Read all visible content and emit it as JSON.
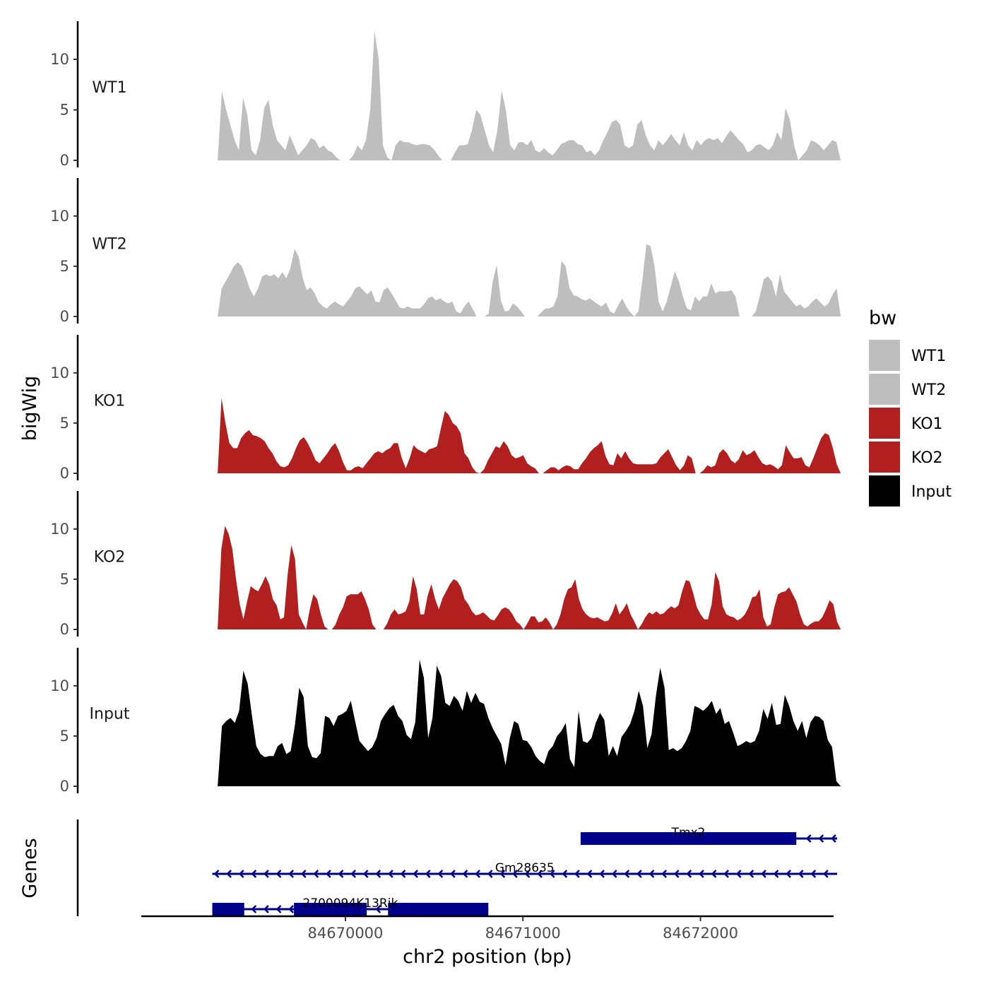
{
  "chart_data": {
    "type": "area",
    "ylabel": "bigWig",
    "xlabel": "chr2 position (bp)",
    "genes_label": "Genes",
    "ylim": [
      0,
      13.5
    ],
    "yticks": [
      0,
      5,
      10
    ],
    "xlim": [
      84668850,
      84672750
    ],
    "xticks": [
      84670000,
      84671000,
      84672000
    ],
    "xtick_labels": [
      "84670000",
      "84671000",
      "84672000"
    ],
    "legend": {
      "title": "bw",
      "placement": "right",
      "entries": [
        {
          "label": "WT1",
          "color": "#bebebe"
        },
        {
          "label": "WT2",
          "color": "#bebebe"
        },
        {
          "label": "KO1",
          "color": "#b21f1f"
        },
        {
          "label": "KO2",
          "color": "#b21f1f"
        },
        {
          "label": "Input",
          "color": "#000000"
        }
      ]
    },
    "x_range": [
      84669280,
      84672790
    ],
    "series": [
      {
        "name": "WT1",
        "color": "#bebebe",
        "values": [
          0,
          6.8,
          5,
          3.5,
          2,
          1,
          6.2,
          4.5,
          1,
          0.5,
          2,
          5.2,
          6,
          3.5,
          2,
          1.5,
          1,
          2.5,
          1.5,
          0.5,
          1,
          1.5,
          2.2,
          2,
          1.2,
          1.5,
          1,
          0.8,
          0.3,
          0,
          0,
          0,
          0.5,
          1.5,
          1,
          2,
          5,
          12.8,
          10,
          1.5,
          0.3,
          0,
          1.5,
          2,
          1.8,
          1.8,
          1.6,
          1.5,
          1.6,
          1.6,
          1.5,
          1.1,
          0.5,
          0,
          0,
          0,
          0.8,
          1.5,
          1.5,
          1.6,
          3,
          5,
          4.5,
          3,
          1.5,
          0.8,
          3,
          6.9,
          5,
          1.5,
          1,
          1.8,
          1.8,
          1.5,
          2,
          1,
          0.8,
          1.2,
          0.8,
          0.5,
          1,
          1.6,
          1.8,
          2,
          2,
          1.6,
          1.5,
          0.8,
          1,
          0.5,
          1,
          2,
          2.8,
          3.8,
          4,
          3.5,
          1.5,
          1.2,
          1.5,
          3.5,
          4,
          2.5,
          1.5,
          1,
          2,
          1.5,
          2,
          2.6,
          2,
          1.5,
          2.8,
          1.5,
          1,
          2,
          1.5,
          2,
          2.2,
          2,
          2.2,
          1.7,
          2.4,
          3,
          2.5,
          2,
          1.6,
          0.8,
          1,
          1.5,
          1.6,
          1.3,
          1,
          1.5,
          2.8,
          2,
          5.2,
          4,
          1.5,
          0,
          0.5,
          1,
          2,
          1.8,
          1.5,
          1,
          1.5,
          2,
          1.8,
          0
        ]
      },
      {
        "name": "WT2",
        "color": "#bebebe",
        "values": [
          0,
          2.8,
          3.5,
          4.2,
          5,
          5.4,
          5,
          3.9,
          2.7,
          2,
          2.8,
          4,
          4.2,
          4,
          4.2,
          3.8,
          4.4,
          3.8,
          4.8,
          6.7,
          6,
          3.9,
          2.6,
          2.9,
          2.3,
          1.4,
          1,
          0.8,
          1.2,
          1.5,
          1.2,
          1,
          1.5,
          2,
          2.8,
          3,
          2.6,
          2.2,
          2.6,
          1.5,
          1.4,
          2.6,
          2.9,
          2.3,
          1.6,
          0.9,
          0.8,
          1,
          0.8,
          0.8,
          0.8,
          1.2,
          1.8,
          2,
          1.6,
          1.8,
          1.5,
          1.3,
          1.5,
          0.5,
          0.3,
          1,
          1.5,
          0.8,
          0,
          0,
          0,
          0.3,
          3.5,
          5.1,
          1.6,
          0.5,
          0.6,
          1.3,
          1,
          0.5,
          0,
          0,
          0,
          0,
          0.4,
          0.8,
          0.8,
          1,
          2,
          5.5,
          5,
          2.8,
          2.1,
          2,
          1.7,
          1.6,
          1.8,
          1.5,
          1.2,
          1,
          1.4,
          0.5,
          0.3,
          1.1,
          1.8,
          1,
          0.4,
          0,
          0.5,
          3.7,
          7.2,
          7,
          5,
          1.5,
          0.5,
          1.5,
          3,
          4.5,
          3.5,
          2,
          0.8,
          0.6,
          2,
          1.5,
          2,
          2,
          3.3,
          2.3,
          2.5,
          2.5,
          2.5,
          2.6,
          2,
          0,
          0,
          0,
          0,
          0.5,
          2,
          3.7,
          4,
          3.5,
          2,
          4.2,
          2.5,
          2,
          1.5,
          1,
          1.2,
          0.8,
          1,
          1.5,
          1.8,
          1.4,
          1,
          1.3,
          2.2,
          2.8,
          0
        ]
      },
      {
        "name": "KO1",
        "color": "#b21f1f",
        "values": [
          0,
          7.5,
          5,
          3,
          2.5,
          2.5,
          3.5,
          4,
          4.3,
          3.8,
          3.7,
          3.5,
          3.2,
          2.5,
          2,
          1.2,
          0.7,
          0.6,
          0.8,
          1.5,
          2.5,
          3.3,
          3.6,
          3,
          2.2,
          1.3,
          1,
          1.5,
          2,
          2.6,
          3,
          2.2,
          1.1,
          0.3,
          0.3,
          0.6,
          0.7,
          0.5,
          1,
          1.5,
          2,
          2.2,
          2,
          2.3,
          2.5,
          3,
          3,
          1.5,
          0.5,
          1.5,
          2.8,
          2.4,
          2.2,
          2,
          2.4,
          2.5,
          2.7,
          4.5,
          6.2,
          5.8,
          5,
          4.7,
          4,
          2,
          1.5,
          0.6,
          0.1,
          0,
          0.4,
          1.3,
          2,
          2.7,
          2.5,
          3.2,
          2.7,
          1.8,
          1.5,
          1.6,
          1.8,
          1,
          0.7,
          0.5,
          0,
          0,
          0.3,
          0.6,
          0.6,
          0.3,
          0.6,
          0.8,
          0.7,
          0.4,
          0.4,
          1,
          1.5,
          2.1,
          2.5,
          2.8,
          3.2,
          1.7,
          0.9,
          0.8,
          2,
          1.5,
          2.2,
          1.5,
          1,
          0.9,
          0.9,
          0.9,
          0.9,
          0.9,
          1,
          1.6,
          2,
          2.4,
          1.6,
          0.8,
          0.3,
          0.8,
          1.8,
          1.5,
          0,
          0,
          0.3,
          0.8,
          0.6,
          0.8,
          2,
          2.4,
          2,
          1.3,
          1,
          1.4,
          2.3,
          1.8,
          2,
          2.3,
          1.6,
          1,
          0.8,
          0.9,
          0.7,
          0.4,
          0.8,
          2.8,
          2.1,
          1.5,
          1.5,
          1.6,
          0.8,
          0.6,
          1.5,
          2.5,
          3.5,
          4,
          3.8,
          2.5,
          0.9,
          0
        ]
      },
      {
        "name": "KO2",
        "color": "#b21f1f",
        "values": [
          0,
          8,
          10.3,
          9.5,
          8,
          5,
          2.5,
          1,
          2.8,
          4.3,
          4,
          3.8,
          4.5,
          5.3,
          4.5,
          3,
          2.4,
          1,
          1.2,
          5.5,
          8.4,
          7,
          1.5,
          0.7,
          0,
          2,
          3.5,
          3,
          1.5,
          0.3,
          0,
          0,
          0.5,
          1.5,
          2.2,
          3.3,
          3.5,
          3.5,
          3.5,
          3.8,
          3,
          2,
          0.5,
          0,
          0,
          0,
          0.6,
          1.5,
          2,
          1.5,
          1.6,
          1.8,
          2.8,
          5.3,
          4,
          1.5,
          1.5,
          3.4,
          4.5,
          3,
          2,
          3.1,
          3.8,
          4.5,
          5,
          4.8,
          4.2,
          3,
          2.5,
          1.8,
          1.4,
          1.5,
          1.7,
          1.4,
          1,
          0.9,
          1.4,
          2,
          2.2,
          2,
          1.5,
          0.8,
          0.5,
          0,
          0.6,
          1.3,
          1.3,
          0.7,
          0.8,
          1.2,
          0.7,
          0,
          0.5,
          1.5,
          3,
          4,
          4.2,
          5,
          3,
          2,
          1.5,
          1.2,
          1.1,
          1.2,
          1,
          0.8,
          0.9,
          1.6,
          2.6,
          1.5,
          2,
          2.6,
          1.5,
          0.8,
          0,
          0.5,
          1.2,
          1.7,
          1.5,
          1.8,
          1.5,
          1.6,
          2,
          2.3,
          2.1,
          2.4,
          3.8,
          4.9,
          4.8,
          3.6,
          2.2,
          1.5,
          1,
          1,
          2.5,
          5.7,
          4.8,
          2.3,
          1.5,
          1.3,
          1.2,
          0.9,
          1.1,
          1.5,
          2.2,
          3.2,
          3.3,
          4,
          1.2,
          0.3,
          0.5,
          2.2,
          3.5,
          3.7,
          3.8,
          4.2,
          3.5,
          2.8,
          1.5,
          0.5,
          0.3,
          0.6,
          0.8,
          0.8,
          1.2,
          2,
          2.9,
          2.5,
          0.8,
          0
        ]
      },
      {
        "name": "Input",
        "color": "#000000",
        "values": [
          0,
          6,
          6.5,
          6.8,
          6.3,
          7.5,
          11.5,
          10.2,
          7,
          4,
          3.2,
          2.9,
          3,
          3,
          4,
          4.3,
          3.2,
          3.5,
          6.1,
          9.8,
          8.9,
          4,
          2.9,
          2.8,
          3.3,
          7,
          6.8,
          6,
          7,
          7.2,
          7.5,
          8.5,
          6.5,
          4.5,
          4,
          3.5,
          3.9,
          4.8,
          6.5,
          7.2,
          7.8,
          8.1,
          7,
          6.5,
          5.1,
          4.7,
          6.4,
          12.6,
          10.8,
          4.8,
          6.8,
          12,
          11,
          8.3,
          8,
          9,
          8.5,
          7.5,
          9.5,
          8.3,
          9.3,
          8.4,
          8.2,
          6.8,
          5.8,
          5,
          4.2,
          2.1,
          4.8,
          6.5,
          6.2,
          4.6,
          4.5,
          3.9,
          3,
          2.5,
          2.2,
          3.5,
          4,
          5,
          5.5,
          6.3,
          2.7,
          1.9,
          7.5,
          4.5,
          4.3,
          4.8,
          6.3,
          7.3,
          6.6,
          3,
          4,
          3,
          4.9,
          5.5,
          6.2,
          7.5,
          9.5,
          8,
          3.8,
          5.2,
          9,
          11.8,
          9.8,
          3.6,
          3.8,
          3.5,
          3.8,
          4.5,
          5.5,
          8,
          7.8,
          7.5,
          7.9,
          8.5,
          7.2,
          7.8,
          6.2,
          6.5,
          5.3,
          4,
          4.2,
          4.5,
          4.3,
          4.5,
          5.5,
          7.7,
          6.7,
          8.3,
          6.1,
          6.2,
          9.1,
          8,
          6.5,
          5.5,
          6.5,
          4.8,
          6.4,
          7,
          6.9,
          6.5,
          4.6,
          3.9,
          0.5,
          0
        ]
      }
    ],
    "genes": [
      {
        "name": "Tmx2",
        "start": 84671325,
        "end": 84672770,
        "strand": "-",
        "exons": [
          [
            84671325,
            84672540
          ]
        ]
      },
      {
        "name": "Gm28635",
        "start": 84669250,
        "end": 84672770,
        "strand": "-",
        "exons": []
      },
      {
        "name": "2700094K13Rik",
        "start": 84669250,
        "end": 84670805,
        "strand": "-",
        "exons": [
          [
            84669250,
            84669430
          ],
          [
            84669710,
            84670120
          ],
          [
            84670240,
            84670805
          ]
        ]
      }
    ]
  }
}
